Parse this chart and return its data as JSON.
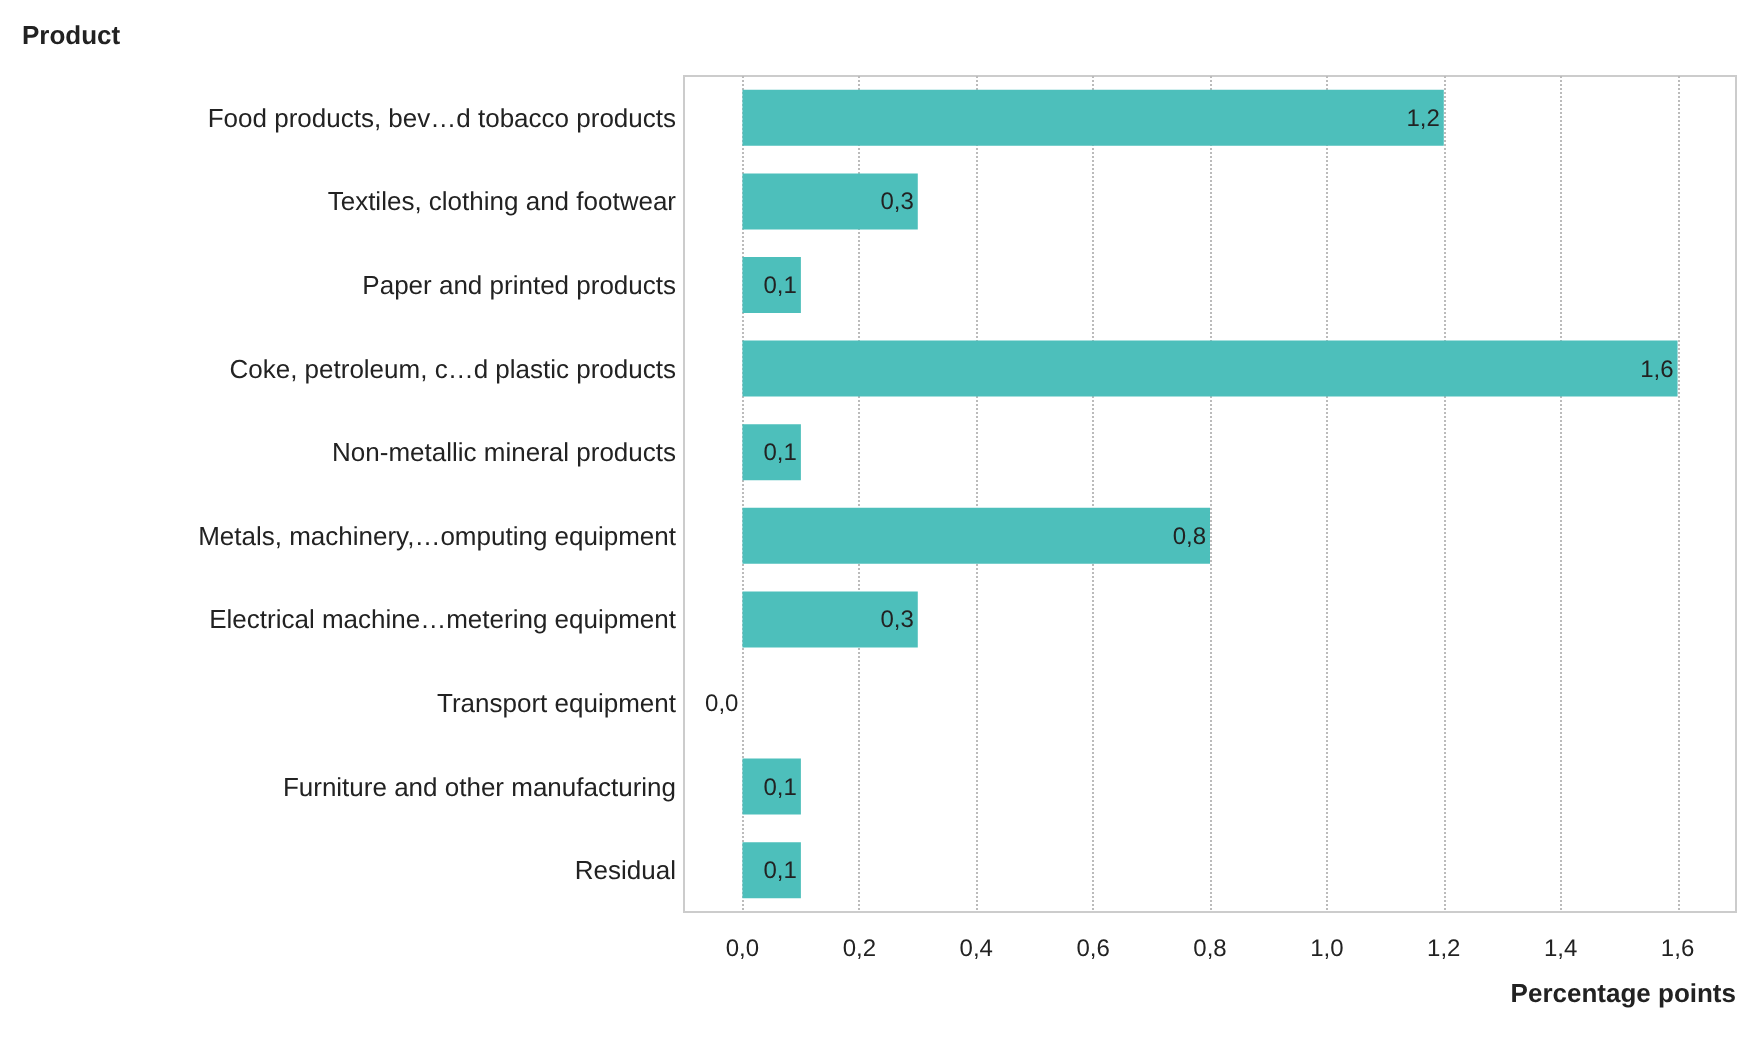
{
  "chart_data": {
    "type": "bar",
    "orientation": "horizontal",
    "ylabel": "Product",
    "xlabel": "Percentage points",
    "categories": [
      "Food products, bev…d tobacco products",
      "Textiles, clothing and footwear",
      "Paper and printed products",
      "Coke, petroleum, c…d plastic products",
      "Non-metallic mineral products",
      "Metals, machinery,…omputing equipment",
      "Electrical machine…metering equipment",
      "Transport equipment",
      "Furniture and other manufacturing",
      "Residual"
    ],
    "values": [
      1.2,
      0.3,
      0.1,
      1.6,
      0.1,
      0.8,
      0.3,
      0.0,
      0.1,
      0.1
    ],
    "value_labels": [
      "1,2",
      "0,3",
      "0,1",
      "1,6",
      "0,1",
      "0,8",
      "0,3",
      "0,0",
      "0,1",
      "0,1"
    ],
    "color": "#4dbfbb",
    "xlim": [
      -0.1,
      1.7
    ],
    "xticks": [
      {
        "value": 0,
        "label": "0,0"
      },
      {
        "value": 0.2,
        "label": "0,2"
      },
      {
        "value": 0.4,
        "label": "0,4"
      },
      {
        "value": 0.6,
        "label": "0,6"
      },
      {
        "value": 0.8,
        "label": "0,8"
      },
      {
        "value": 1.0,
        "label": "1,0"
      },
      {
        "value": 1.2,
        "label": "1,2"
      },
      {
        "value": 1.4,
        "label": "1,4"
      },
      {
        "value": 1.6,
        "label": "1,6"
      }
    ],
    "grid": "x"
  }
}
